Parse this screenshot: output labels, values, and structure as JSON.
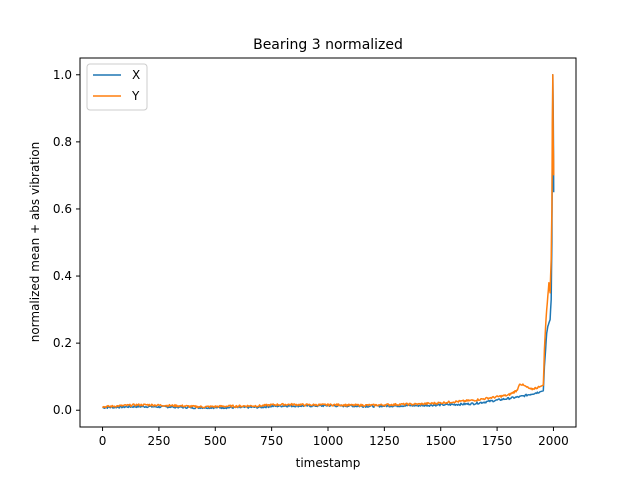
{
  "chart_data": {
    "type": "line",
    "title": "Bearing 3 normalized",
    "xlabel": "timestamp",
    "ylabel": "normalized mean + abs vibration",
    "xlim": [
      -100,
      2100
    ],
    "ylim": [
      -0.05,
      1.05
    ],
    "xticks": [
      0,
      250,
      500,
      750,
      1000,
      1250,
      1500,
      1750,
      2000
    ],
    "yticks": [
      0.0,
      0.2,
      0.4,
      0.6,
      0.8,
      1.0
    ],
    "xtick_labels": [
      "0",
      "250",
      "500",
      "750",
      "1000",
      "1250",
      "1500",
      "1750",
      "2000"
    ],
    "ytick_labels": [
      "0.0",
      "0.2",
      "0.4",
      "0.6",
      "0.8",
      "1.0"
    ],
    "grid": false,
    "legend": "upper-left",
    "series": [
      {
        "name": "X",
        "color": "#1f77b4",
        "x": [
          0,
          50,
          100,
          150,
          200,
          250,
          300,
          350,
          400,
          450,
          500,
          550,
          600,
          650,
          700,
          750,
          800,
          850,
          900,
          950,
          1000,
          1050,
          1100,
          1150,
          1200,
          1250,
          1300,
          1350,
          1400,
          1450,
          1500,
          1550,
          1600,
          1650,
          1700,
          1750,
          1800,
          1850,
          1900,
          1940,
          1955,
          1960,
          1965,
          1970,
          1975,
          1980,
          1985,
          1990,
          1993,
          1995,
          1997,
          1999,
          2001
        ],
        "y": [
          0.008,
          0.009,
          0.01,
          0.011,
          0.011,
          0.01,
          0.01,
          0.009,
          0.008,
          0.008,
          0.008,
          0.008,
          0.008,
          0.009,
          0.009,
          0.012,
          0.013,
          0.013,
          0.013,
          0.013,
          0.014,
          0.013,
          0.013,
          0.012,
          0.012,
          0.013,
          0.013,
          0.014,
          0.014,
          0.015,
          0.016,
          0.017,
          0.018,
          0.02,
          0.025,
          0.03,
          0.035,
          0.04,
          0.048,
          0.055,
          0.058,
          0.13,
          0.18,
          0.23,
          0.25,
          0.26,
          0.27,
          0.33,
          0.5,
          0.75,
          1.0,
          0.9,
          0.65
        ]
      },
      {
        "name": "Y",
        "color": "#ff7f0e",
        "x": [
          0,
          50,
          100,
          150,
          200,
          250,
          300,
          350,
          400,
          450,
          500,
          550,
          600,
          650,
          700,
          750,
          800,
          850,
          900,
          950,
          1000,
          1050,
          1100,
          1150,
          1200,
          1250,
          1300,
          1350,
          1400,
          1450,
          1500,
          1550,
          1600,
          1650,
          1700,
          1750,
          1800,
          1840,
          1850,
          1900,
          1940,
          1955,
          1960,
          1965,
          1970,
          1975,
          1980,
          1985,
          1990,
          1993,
          1995,
          1997,
          1999,
          2001
        ],
        "y": [
          0.01,
          0.012,
          0.014,
          0.016,
          0.016,
          0.015,
          0.014,
          0.013,
          0.011,
          0.01,
          0.011,
          0.012,
          0.012,
          0.013,
          0.013,
          0.016,
          0.017,
          0.017,
          0.016,
          0.016,
          0.016,
          0.016,
          0.015,
          0.015,
          0.015,
          0.016,
          0.017,
          0.018,
          0.018,
          0.02,
          0.022,
          0.025,
          0.027,
          0.03,
          0.035,
          0.04,
          0.045,
          0.06,
          0.08,
          0.062,
          0.07,
          0.075,
          0.18,
          0.25,
          0.3,
          0.34,
          0.38,
          0.35,
          0.45,
          0.6,
          0.85,
          1.0,
          0.8,
          0.7
        ]
      }
    ]
  }
}
